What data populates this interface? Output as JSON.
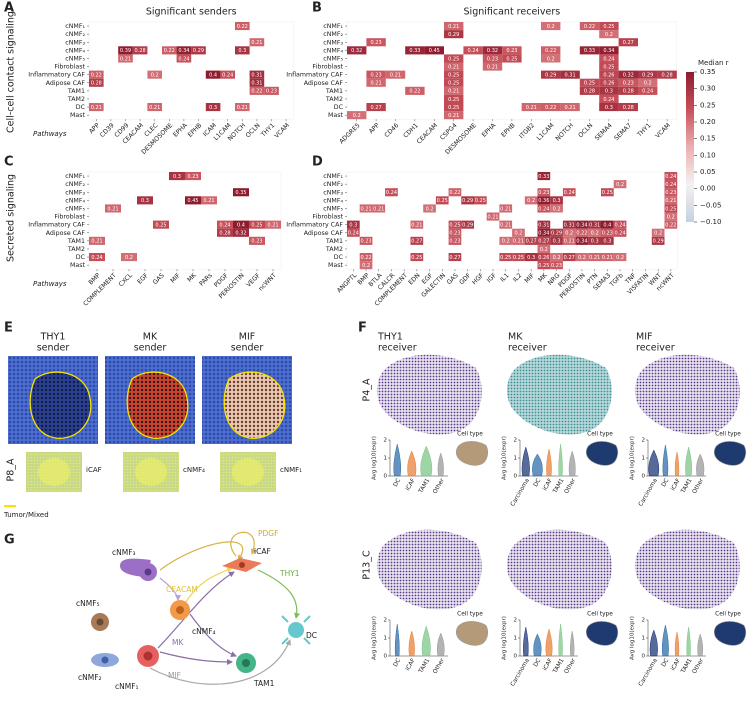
{
  "panel_letters": [
    "A",
    "B",
    "C",
    "D",
    "E",
    "F",
    "G"
  ],
  "section_labels": [
    "Cell-cell contact signaling",
    "Secreted signaling"
  ],
  "chart_data": [
    {
      "type": "heatmap",
      "title": "Significant senders",
      "x_label": "Pathways",
      "rows": [
        "cNMF₁",
        "cNMF₂",
        "cNMF₃",
        "cNMF₄",
        "cNMF₅",
        "Fibroblast",
        "Inflammatory CAF",
        "Adipose CAF",
        "TAM1",
        "TAM2",
        "DC",
        "Mast"
      ],
      "columns": [
        "APP",
        "CD39",
        "CD99",
        "CEACAM",
        "CLEC",
        "DESMOSOME",
        "EPHA",
        "EPHB",
        "ICAM",
        "L1CAM",
        "NOTCH",
        "OCLN",
        "THY1",
        "VCAM"
      ],
      "values": [
        [
          null,
          null,
          null,
          null,
          null,
          null,
          null,
          null,
          null,
          null,
          0.22,
          null,
          null,
          null
        ],
        [
          null,
          null,
          null,
          null,
          null,
          null,
          null,
          null,
          null,
          null,
          null,
          null,
          null,
          null
        ],
        [
          null,
          null,
          null,
          null,
          null,
          null,
          null,
          null,
          null,
          null,
          null,
          0.21,
          null,
          null
        ],
        [
          null,
          null,
          0.39,
          0.28,
          null,
          0.22,
          0.34,
          0.29,
          null,
          null,
          0.3,
          null,
          null,
          null
        ],
        [
          null,
          null,
          0.21,
          null,
          null,
          null,
          0.24,
          null,
          null,
          null,
          null,
          null,
          null,
          null
        ],
        [
          null,
          null,
          null,
          null,
          null,
          null,
          null,
          null,
          null,
          null,
          null,
          null,
          null,
          null
        ],
        [
          0.22,
          null,
          null,
          null,
          0.2,
          null,
          null,
          null,
          0.4,
          0.24,
          null,
          0.31,
          null,
          null
        ],
        [
          0.28,
          null,
          null,
          null,
          null,
          null,
          null,
          null,
          null,
          null,
          null,
          0.31,
          null,
          null
        ],
        [
          null,
          null,
          null,
          null,
          null,
          null,
          null,
          null,
          null,
          null,
          null,
          0.22,
          0.23,
          null
        ],
        [
          null,
          null,
          null,
          null,
          null,
          null,
          null,
          null,
          null,
          null,
          null,
          null,
          null,
          null
        ],
        [
          0.21,
          null,
          null,
          null,
          0.21,
          null,
          null,
          null,
          0.3,
          null,
          0.21,
          null,
          null,
          null
        ],
        [
          null,
          null,
          null,
          null,
          null,
          null,
          null,
          null,
          null,
          null,
          null,
          null,
          null,
          null
        ]
      ]
    },
    {
      "type": "heatmap",
      "title": "Significant receivers",
      "rows": [
        "cNMF₁",
        "cNMF₂",
        "cNMF₃",
        "cNMF₄",
        "cNMF₅",
        "Fibroblast",
        "Inflammatory CAF",
        "Adipose CAF",
        "TAM1",
        "TAM2",
        "DC",
        "Mast"
      ],
      "columns": [
        "ADGRE5",
        "APP",
        "CD46",
        "CDH1",
        "CEACAM",
        "CSPG4",
        "DESMOSOME",
        "EPHA",
        "EPHB",
        "ITGB2",
        "L1CAM",
        "NOTCH",
        "OCLN",
        "SEMA4",
        "SEMA7",
        "THY1",
        "VCAM"
      ],
      "values": [
        [
          null,
          null,
          null,
          null,
          null,
          0.21,
          null,
          null,
          null,
          null,
          0.2,
          null,
          0.22,
          0.25,
          null,
          null,
          null
        ],
        [
          null,
          null,
          null,
          null,
          null,
          0.29,
          null,
          null,
          null,
          null,
          null,
          null,
          null,
          0.2,
          null,
          null,
          null
        ],
        [
          null,
          0.23,
          null,
          null,
          null,
          null,
          null,
          null,
          null,
          null,
          null,
          null,
          null,
          null,
          0.27,
          null,
          null
        ],
        [
          0.32,
          null,
          null,
          0.33,
          0.45,
          null,
          0.24,
          0.32,
          0.23,
          null,
          0.22,
          null,
          0.33,
          0.34,
          null,
          null,
          null
        ],
        [
          null,
          null,
          null,
          null,
          null,
          0.25,
          null,
          0.23,
          0.25,
          null,
          0.2,
          null,
          null,
          0.24,
          null,
          null,
          null
        ],
        [
          null,
          null,
          null,
          null,
          null,
          0.21,
          null,
          0.21,
          null,
          null,
          null,
          null,
          null,
          0.25,
          null,
          null,
          null
        ],
        [
          null,
          0.23,
          0.21,
          null,
          null,
          0.25,
          null,
          null,
          null,
          null,
          0.29,
          0.31,
          null,
          0.26,
          0.32,
          0.29,
          0.28
        ],
        [
          null,
          0.21,
          null,
          null,
          null,
          0.25,
          null,
          null,
          null,
          null,
          null,
          null,
          0.25,
          0.26,
          0.23,
          0.2,
          null
        ],
        [
          null,
          null,
          null,
          0.22,
          null,
          0.21,
          null,
          null,
          null,
          null,
          null,
          null,
          0.28,
          0.3,
          0.28,
          0.24,
          null
        ],
        [
          null,
          null,
          null,
          null,
          null,
          0.25,
          null,
          null,
          null,
          null,
          null,
          null,
          null,
          0.24,
          null,
          null,
          null
        ],
        [
          null,
          0.27,
          null,
          null,
          null,
          0.25,
          null,
          null,
          null,
          0.21,
          0.22,
          0.21,
          null,
          0.3,
          0.28,
          null,
          null
        ],
        [
          0.2,
          null,
          null,
          null,
          null,
          0.21,
          null,
          null,
          null,
          null,
          null,
          null,
          null,
          null,
          null,
          null,
          null
        ]
      ]
    },
    {
      "type": "heatmap",
      "x_label": "Pathways",
      "rows": [
        "cNMF₁",
        "cNMF₂",
        "cNMF₃",
        "cNMF₄",
        "cNMF₅",
        "Fibroblast",
        "Inflammatory CAF",
        "Adipose CAF",
        "TAM1",
        "TAM2",
        "DC",
        "Mast"
      ],
      "columns": [
        "BMP",
        "COMPLEMENT",
        "CXCL",
        "EGF",
        "GAS",
        "MIF",
        "MK",
        "PARs",
        "PDGF",
        "PERIOSTIN",
        "VEGF",
        "ncWNT"
      ],
      "values": [
        [
          null,
          null,
          null,
          null,
          null,
          0.3,
          0.23,
          null,
          null,
          null,
          null,
          null
        ],
        [
          null,
          null,
          null,
          null,
          null,
          null,
          null,
          null,
          null,
          null,
          null,
          null
        ],
        [
          null,
          null,
          null,
          null,
          null,
          null,
          null,
          null,
          null,
          0.35,
          null,
          null
        ],
        [
          null,
          null,
          null,
          0.3,
          null,
          null,
          0.45,
          0.21,
          null,
          null,
          null,
          null
        ],
        [
          null,
          0.21,
          null,
          null,
          null,
          null,
          null,
          null,
          null,
          null,
          null,
          null
        ],
        [
          null,
          null,
          null,
          null,
          null,
          null,
          null,
          null,
          null,
          null,
          null,
          null
        ],
        [
          null,
          null,
          null,
          null,
          0.25,
          null,
          null,
          null,
          0.24,
          0.4,
          0.25,
          0.21
        ],
        [
          null,
          null,
          null,
          null,
          null,
          null,
          null,
          null,
          0.28,
          0.32,
          null,
          null
        ],
        [
          0.21,
          null,
          null,
          null,
          null,
          null,
          null,
          null,
          null,
          null,
          0.23,
          null
        ],
        [
          null,
          null,
          null,
          null,
          null,
          null,
          null,
          null,
          null,
          null,
          null,
          null
        ],
        [
          0.24,
          null,
          0.2,
          null,
          null,
          null,
          null,
          null,
          null,
          null,
          null,
          null
        ],
        [
          null,
          null,
          null,
          null,
          null,
          null,
          null,
          null,
          null,
          null,
          null,
          null
        ]
      ]
    },
    {
      "type": "heatmap",
      "rows": [
        "cNMF₁",
        "cNMF₂",
        "cNMF₃",
        "cNMF₄",
        "cNMF₅",
        "Fibroblast",
        "Inflammatory CAF",
        "Adipose CAF",
        "TAM1",
        "TAM2",
        "DC",
        "Mast"
      ],
      "columns": [
        "ANGPTL",
        "BMP",
        "BTLA",
        "CALCR",
        "COMPLEMENT",
        "EDN",
        "EGF",
        "GALECTIN",
        "GAS",
        "GDF",
        "HGF",
        "IGF",
        "IL1",
        "IL2",
        "MIF",
        "MK",
        "NRG",
        "PDGF",
        "PERIOSTIN",
        "PTN",
        "SEMA3",
        "TGFb",
        "TNF",
        "VISFATIN",
        "WNT",
        "ncWNT"
      ],
      "values": [
        [
          null,
          null,
          null,
          null,
          null,
          null,
          null,
          null,
          null,
          null,
          null,
          null,
          null,
          null,
          null,
          0.33,
          null,
          null,
          null,
          null,
          null,
          null,
          null,
          null,
          null,
          0.24
        ],
        [
          null,
          null,
          null,
          null,
          null,
          null,
          null,
          null,
          null,
          null,
          null,
          null,
          null,
          null,
          null,
          null,
          null,
          null,
          null,
          null,
          null,
          0.2,
          null,
          null,
          null,
          0.24
        ],
        [
          null,
          null,
          null,
          0.24,
          null,
          null,
          null,
          null,
          0.22,
          null,
          null,
          null,
          null,
          null,
          null,
          0.23,
          null,
          0.24,
          null,
          null,
          0.25,
          null,
          null,
          null,
          null,
          0.23
        ],
        [
          null,
          null,
          null,
          null,
          null,
          null,
          null,
          0.25,
          null,
          0.29,
          0.25,
          null,
          null,
          null,
          0.2,
          0.36,
          0.3,
          null,
          null,
          null,
          null,
          null,
          null,
          null,
          null,
          0.21
        ],
        [
          null,
          0.21,
          0.21,
          null,
          null,
          null,
          0.2,
          null,
          null,
          null,
          null,
          null,
          0.21,
          null,
          null,
          0.24,
          0.2,
          null,
          null,
          null,
          null,
          null,
          null,
          null,
          null,
          0.25
        ],
        [
          null,
          null,
          null,
          null,
          null,
          null,
          null,
          null,
          null,
          null,
          null,
          0.21,
          null,
          null,
          null,
          null,
          null,
          null,
          null,
          null,
          null,
          null,
          null,
          null,
          null,
          0.2
        ],
        [
          0.3,
          null,
          null,
          null,
          null,
          0.21,
          null,
          null,
          0.25,
          0.29,
          null,
          null,
          0.21,
          null,
          null,
          0.31,
          null,
          0.31,
          0.34,
          0.31,
          0.4,
          0.24,
          null,
          null,
          null,
          0.22
        ],
        [
          0.24,
          null,
          null,
          null,
          null,
          null,
          null,
          null,
          0.23,
          null,
          null,
          null,
          null,
          0.2,
          null,
          0.34,
          0.29,
          0.2,
          0.22,
          0.2,
          0.23,
          0.24,
          null,
          null,
          0.2,
          null
        ],
        [
          null,
          0.23,
          null,
          null,
          null,
          0.27,
          null,
          null,
          0.23,
          null,
          null,
          null,
          0.2,
          0.21,
          0.27,
          0.27,
          0.3,
          0.21,
          0.34,
          0.3,
          0.3,
          null,
          null,
          null,
          0.29,
          null
        ],
        [
          null,
          null,
          null,
          null,
          null,
          null,
          null,
          null,
          null,
          null,
          null,
          null,
          null,
          null,
          null,
          0.2,
          null,
          null,
          null,
          null,
          null,
          null,
          null,
          null,
          null,
          null
        ],
        [
          null,
          0.22,
          null,
          null,
          null,
          0.25,
          null,
          null,
          0.27,
          null,
          null,
          null,
          0.25,
          0.25,
          0.3,
          0.26,
          0.2,
          0.27,
          0.2,
          0.21,
          0.21,
          0.2,
          null,
          null,
          null,
          null
        ],
        [
          null,
          0.2,
          null,
          null,
          null,
          null,
          null,
          null,
          null,
          null,
          null,
          null,
          null,
          null,
          null,
          0.25,
          0.23,
          null,
          null,
          null,
          null,
          null,
          null,
          null,
          null,
          null
        ]
      ]
    }
  ],
  "colorbar": {
    "title": "Median r",
    "lim": [
      -0.1,
      0.35
    ],
    "ticks": [
      {
        "value": 0.35,
        "label": "0.35"
      },
      {
        "value": 0.3,
        "label": "0.30"
      },
      {
        "value": 0.25,
        "label": "0.25"
      },
      {
        "value": 0.2,
        "label": "0.20"
      },
      {
        "value": 0.15,
        "label": "0.15"
      },
      {
        "value": 0.1,
        "label": "0.10"
      },
      {
        "value": 0.05,
        "label": "0.05"
      },
      {
        "value": 0,
        "label": "0.00"
      },
      {
        "value": -0.05,
        "label": "−0.05"
      },
      {
        "value": -0.1,
        "label": "−0.10"
      }
    ],
    "colors": [
      "#c5d0e3",
      "#f6f1f1",
      "#eab0b0",
      "#c8505a",
      "#8e1b2e"
    ]
  },
  "panel_e": {
    "sample": "P8_A",
    "legend": "Tumor/Mixed",
    "plots": [
      {
        "gene": "THY1",
        "role": "sender",
        "cell": "iCAF"
      },
      {
        "gene": "MK",
        "role": "sender",
        "cell": "cNMF₄"
      },
      {
        "gene": "MIF",
        "role": "sender",
        "cell": "cNMF₁"
      }
    ]
  },
  "panel_f": {
    "samples": [
      "P4_A",
      "P13_C"
    ],
    "y_label": "Avg log10(expr)",
    "legend_title": "Cell type",
    "ylim": [
      0,
      2
    ],
    "yticks": [
      0,
      1,
      2
    ],
    "plots": [
      {
        "gene": "THY1",
        "role": "receiver",
        "categories": [
          "DC",
          "iCAF",
          "TAM1",
          "Other"
        ],
        "colors": [
          "#2f6fa8",
          "#e8823a",
          "#7fc58a",
          "#9a9a9a"
        ]
      },
      {
        "gene": "MK",
        "role": "receiver",
        "categories": [
          "Carcinoma",
          "DC",
          "iCAF",
          "TAM1",
          "Other"
        ],
        "colors": [
          "#1e3a78",
          "#2f6fa8",
          "#e8823a",
          "#7fc58a",
          "#9a9a9a"
        ]
      },
      {
        "gene": "MIF",
        "role": "receiver",
        "categories": [
          "Carcinoma",
          "DC",
          "iCAF",
          "TAM1",
          "Other"
        ],
        "colors": [
          "#1e3a78",
          "#2f6fa8",
          "#e8823a",
          "#7fc58a",
          "#9a9a9a"
        ]
      }
    ]
  },
  "panel_g": {
    "nodes": [
      "cNMF₃",
      "cNMF₅",
      "cNMF₂",
      "cNMF₁",
      "cNMF₄",
      "iCAF",
      "DC",
      "TAM1"
    ],
    "edges": [
      "PDGF",
      "CEACAM",
      "THY1",
      "MK",
      "MIF"
    ]
  }
}
